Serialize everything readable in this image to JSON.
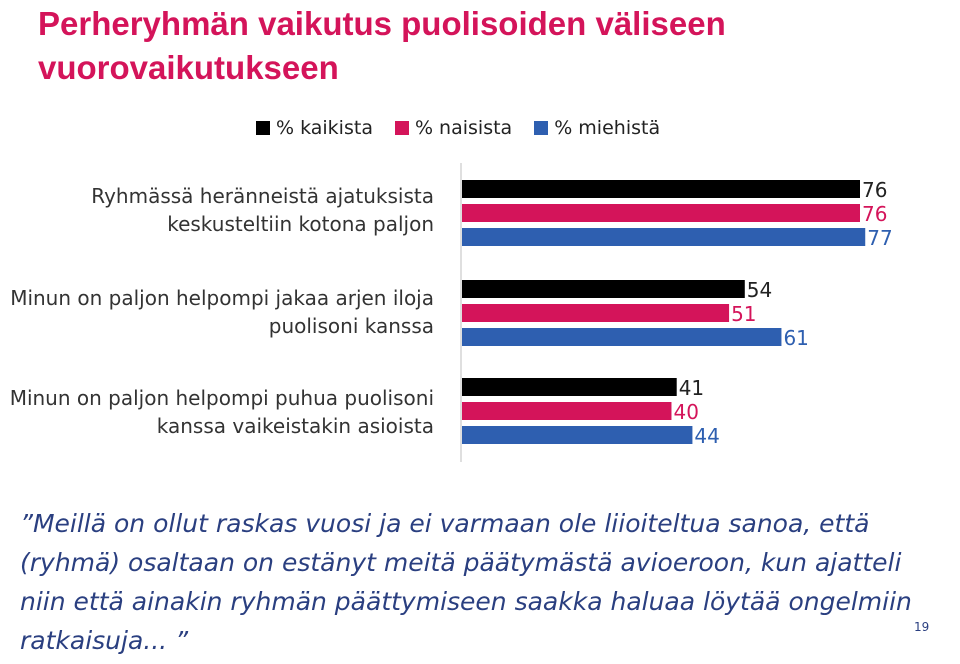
{
  "slide": {
    "title": "Perheryhmän vaikutus puolisoiden väliseen vuorovaikutukseen",
    "quote": "”Meillä on ollut raskas vuosi ja ei varmaan ole liioiteltua sanoa, että (ryhmä) osaltaan on estänyt meitä päätymästä avioeroon, kun ajatteli niin että ainakin ryhmän päättymiseen saakka haluaa löytää ongelmiin ratkaisuja... ”",
    "page_number": "19"
  },
  "chart_data": {
    "type": "bar",
    "orientation": "horizontal",
    "categories": [
      "Ryhmässä heränneistä ajatuksista keskusteltiin kotona paljon",
      "Minun on paljon helpompi jakaa arjen iloja puolisoni kanssa",
      "Minun on paljon helpompi puhua puolisoni kanssa vaikeistakin asioista"
    ],
    "series": [
      {
        "name": "% kaikista",
        "color": "#000000",
        "values": [
          76,
          54,
          41
        ]
      },
      {
        "name": "% naisista",
        "color": "#d4145a",
        "values": [
          76,
          51,
          40
        ]
      },
      {
        "name": "% miehistä",
        "color": "#2e5fb0",
        "values": [
          77,
          61,
          44
        ]
      }
    ],
    "xlim": [
      0,
      100
    ],
    "grid": false,
    "legend_position": "top-right",
    "data_labels": true
  }
}
